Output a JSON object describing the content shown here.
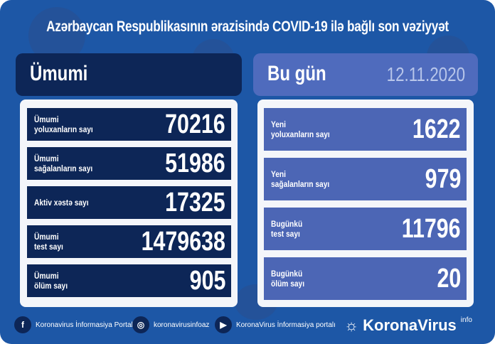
{
  "title": "Azərbaycan Respublikasının ərazisində COVID-19 ilə bağlı son vəziyyət",
  "colors": {
    "background": "#1d57a6",
    "left_panel": "#0d2657",
    "right_panel": "#4c66b5"
  },
  "left": {
    "heading": "Ümumi",
    "rows": [
      {
        "label": "Ümumi\nyoluxanların sayı",
        "value": "70216"
      },
      {
        "label": "Ümumi\nsağalanların sayı",
        "value": "51986"
      },
      {
        "label": "Aktiv xəstə sayı",
        "value": "17325"
      },
      {
        "label": "Ümumi\ntest sayı",
        "value": "1479638"
      },
      {
        "label": "Ümumi\nölüm sayı",
        "value": "905"
      }
    ]
  },
  "right": {
    "heading": "Bu gün",
    "date": "12.11.2020",
    "rows": [
      {
        "label": "Yeni\nyoluxanların sayı",
        "value": "1622"
      },
      {
        "label": "Yeni\nsağalanların sayı",
        "value": "979"
      },
      {
        "label": "Bugünkü\ntest sayı",
        "value": "11796"
      },
      {
        "label": "Bugünkü\nölüm sayı",
        "value": "20"
      }
    ]
  },
  "footer": {
    "facebook": "Koronavirus İnformasiya Portalı",
    "instagram": "koronavirusinfoaz",
    "youtube": "KoronaVirus İnformasiya portalı",
    "brand": "KoronaVirus",
    "brand_sup": "info"
  }
}
